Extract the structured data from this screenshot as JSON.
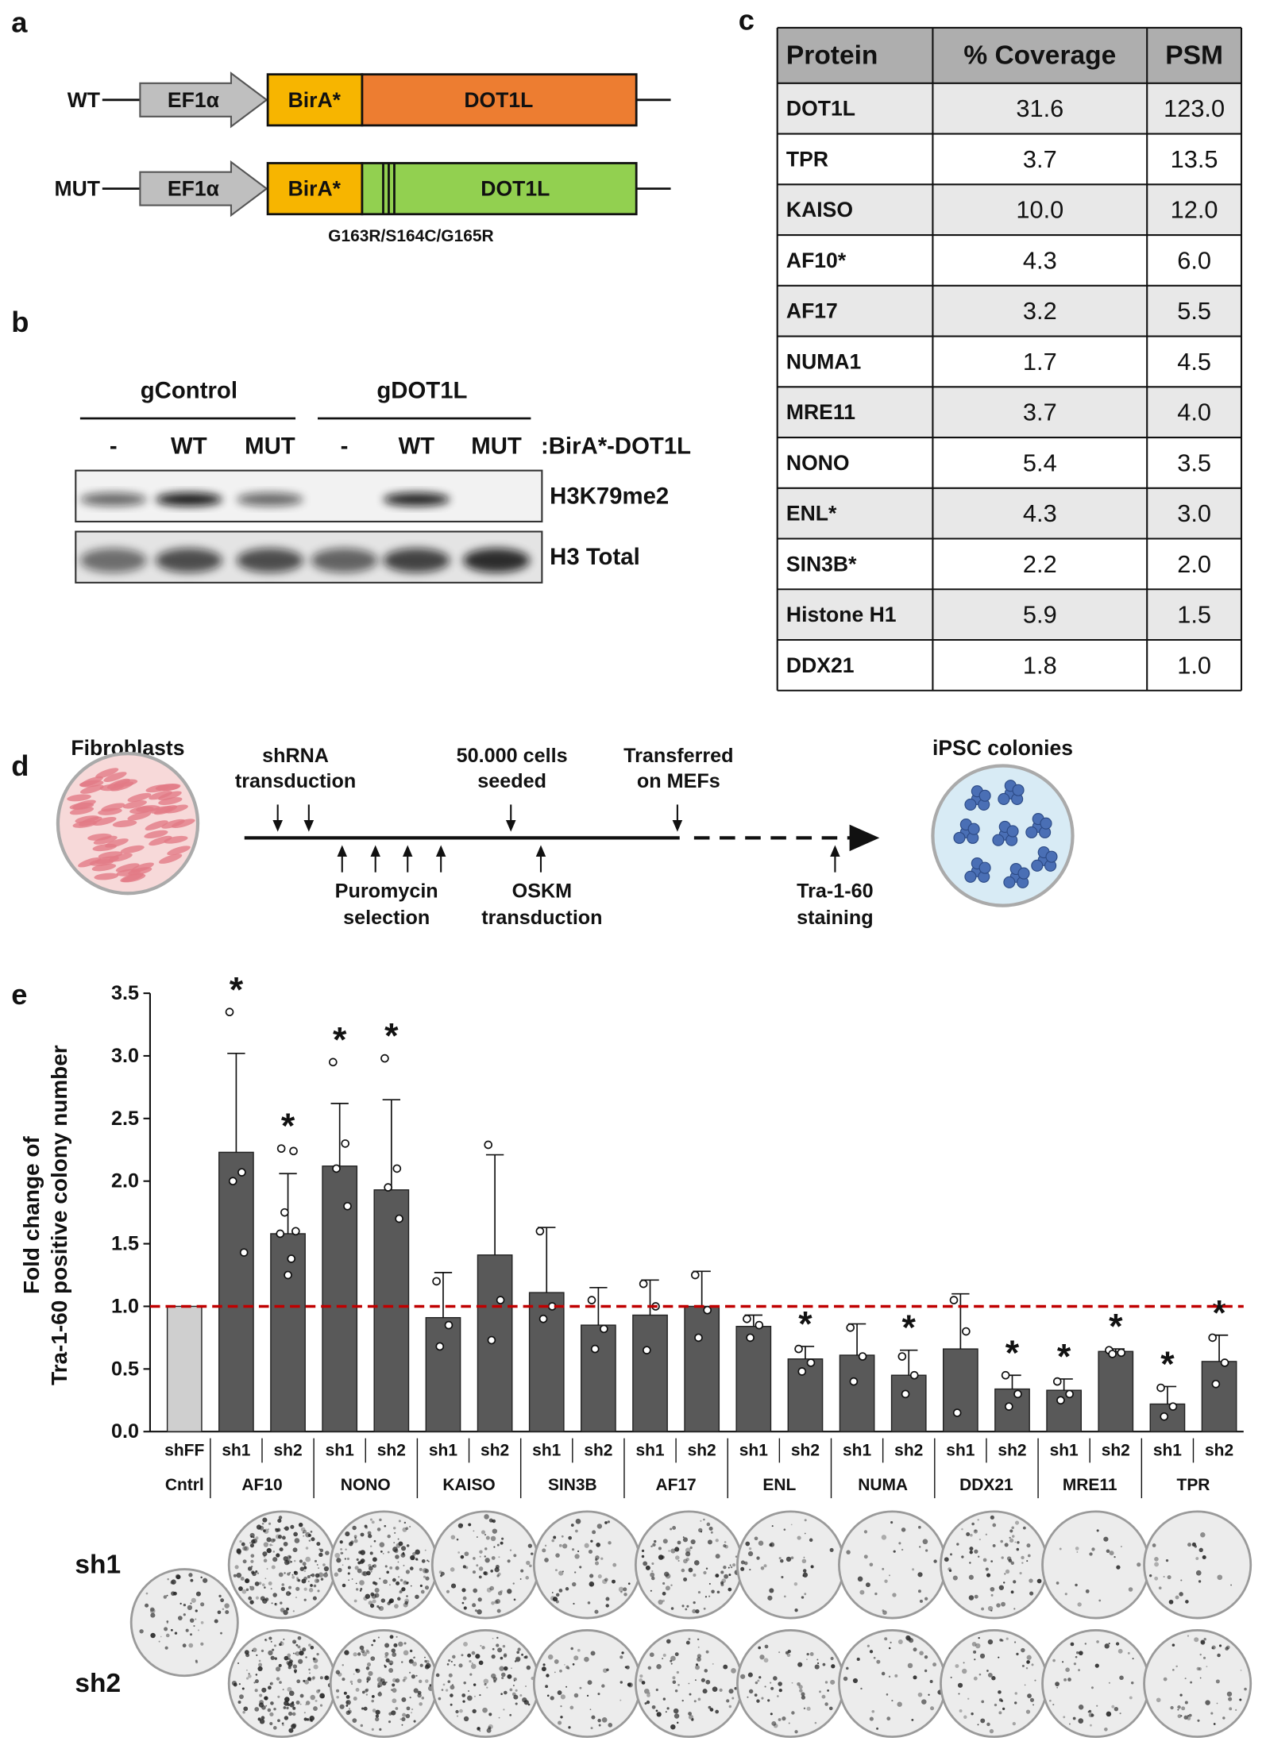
{
  "panel_labels": [
    "a",
    "b",
    "c",
    "d",
    "e"
  ],
  "constructs": {
    "rows": [
      {
        "label": "WT",
        "promoter": "EF1α",
        "tag": "BirA*",
        "gene": "DOT1L"
      },
      {
        "label": "MUT",
        "promoter": "EF1α",
        "tag": "BirA*",
        "gene": "DOT1L"
      }
    ],
    "mutation": "G163R/S164C/G165R"
  },
  "western_blot": {
    "groups": [
      "gControl",
      "gDOT1L"
    ],
    "lanes": [
      "-",
      "WT",
      "MUT",
      "-",
      "WT",
      "MUT"
    ],
    "lane_label": ":BirA*-DOT1L",
    "bands": [
      "H3K79me2",
      "H3 Total"
    ]
  },
  "table": {
    "header": [
      "Protein",
      "% Coverage",
      "PSM"
    ],
    "rows": [
      [
        "DOT1L",
        "31.6",
        "123.0"
      ],
      [
        "TPR",
        "3.7",
        "13.5"
      ],
      [
        "KAISO",
        "10.0",
        "12.0"
      ],
      [
        "AF10*",
        "4.3",
        "6.0"
      ],
      [
        "AF17",
        "3.2",
        "5.5"
      ],
      [
        "NUMA1",
        "1.7",
        "4.5"
      ],
      [
        "MRE11",
        "3.7",
        "4.0"
      ],
      [
        "NONO",
        "5.4",
        "3.5"
      ],
      [
        "ENL*",
        "4.3",
        "3.0"
      ],
      [
        "SIN3B*",
        "2.2",
        "2.0"
      ],
      [
        "Histone H1",
        "5.9",
        "1.5"
      ],
      [
        "DDX21",
        "1.8",
        "1.0"
      ]
    ]
  },
  "timeline": {
    "start": "Fibroblasts",
    "end": "iPSC colonies",
    "above": [
      [
        "shRNA",
        "transduction"
      ],
      [
        "50.000 cells",
        "seeded"
      ],
      [
        "Transferred",
        "on MEFs"
      ]
    ],
    "below": [
      [
        "Puromycin",
        "selection"
      ],
      [
        "OSKM",
        "transduction"
      ],
      [
        "Tra-1-60",
        "staining"
      ]
    ]
  },
  "chart_data": {
    "type": "bar",
    "y_label": [
      "Fold change of",
      "Tra-1-60 positive colony number"
    ],
    "ylim": [
      0,
      3.5
    ],
    "yticks": [
      {
        "value": 0,
        "label": "0.0"
      },
      0.5,
      {
        "value": 1,
        "label": "1.0"
      },
      1.5,
      {
        "value": 2,
        "label": "2.0"
      },
      2.5,
      {
        "value": 3,
        "label": "3.0"
      },
      3.5
    ],
    "reference_line": 1,
    "reference_color": "#c00000",
    "color": "#595959",
    "groups": [
      {
        "label": "Cntrl",
        "bars": [
          {
            "label": "shFF",
            "value": 1.0,
            "color": "#cfcfcf"
          }
        ]
      },
      {
        "label": "AF10",
        "bars": [
          {
            "label": "sh1",
            "value": 2.23,
            "error": 0.79,
            "points": [
              3.35,
              2.07,
              2.0,
              1.43
            ],
            "significance": "*"
          },
          {
            "label": "sh2",
            "value": 1.58,
            "error": 0.48,
            "points": [
              2.26,
              2.24,
              1.75,
              1.6,
              1.58,
              1.38,
              1.25
            ],
            "significance": "*"
          }
        ]
      },
      {
        "label": "NONO",
        "bars": [
          {
            "label": "sh1",
            "value": 2.12,
            "error": 0.5,
            "points": [
              2.95,
              2.3,
              2.1,
              1.8
            ],
            "significance": "*"
          },
          {
            "label": "sh2",
            "value": 1.93,
            "error": 0.72,
            "points": [
              2.98,
              2.1,
              1.95,
              1.7
            ],
            "significance": "*"
          }
        ]
      },
      {
        "label": "KAISO",
        "bars": [
          {
            "label": "sh1",
            "value": 0.91,
            "error": 0.36,
            "points": [
              1.2,
              0.85,
              0.68
            ]
          },
          {
            "label": "sh2",
            "value": 1.41,
            "error": 0.8,
            "points": [
              2.29,
              1.05,
              0.73
            ]
          }
        ]
      },
      {
        "label": "SIN3B",
        "bars": [
          {
            "label": "sh1",
            "value": 1.11,
            "error": 0.52,
            "points": [
              1.6,
              1.0,
              0.9
            ]
          },
          {
            "label": "sh2",
            "value": 0.85,
            "error": 0.3,
            "points": [
              1.05,
              0.82,
              0.66
            ]
          }
        ]
      },
      {
        "label": "AF17",
        "bars": [
          {
            "label": "sh1",
            "value": 0.93,
            "error": 0.28,
            "points": [
              1.18,
              1.0,
              0.65
            ]
          },
          {
            "label": "sh2",
            "value": 1.0,
            "error": 0.28,
            "points": [
              1.25,
              0.97,
              0.75
            ]
          }
        ]
      },
      {
        "label": "ENL",
        "bars": [
          {
            "label": "sh1",
            "value": 0.84,
            "error": 0.09,
            "points": [
              0.9,
              0.85,
              0.75
            ]
          },
          {
            "label": "sh2",
            "value": 0.58,
            "error": 0.1,
            "points": [
              0.66,
              0.55,
              0.48
            ],
            "significance": "*"
          }
        ]
      },
      {
        "label": "NUMA",
        "bars": [
          {
            "label": "sh1",
            "value": 0.61,
            "error": 0.25,
            "points": [
              0.83,
              0.6,
              0.4
            ]
          },
          {
            "label": "sh2",
            "value": 0.45,
            "error": 0.2,
            "points": [
              0.6,
              0.45,
              0.3
            ],
            "significance": "*"
          }
        ]
      },
      {
        "label": "DDX21",
        "bars": [
          {
            "label": "sh1",
            "value": 0.66,
            "error": 0.44,
            "points": [
              1.05,
              0.8,
              0.15
            ]
          },
          {
            "label": "sh2",
            "value": 0.34,
            "error": 0.11,
            "points": [
              0.45,
              0.3,
              0.2
            ],
            "significance": "*"
          }
        ]
      },
      {
        "label": "MRE11",
        "bars": [
          {
            "label": "sh1",
            "value": 0.33,
            "error": 0.09,
            "points": [
              0.4,
              0.3,
              0.25
            ],
            "significance": "*"
          },
          {
            "label": "sh2",
            "value": 0.64,
            "error": 0.02,
            "points": [
              0.65,
              0.63,
              0.62
            ],
            "significance": "*"
          }
        ]
      },
      {
        "label": "TPR",
        "bars": [
          {
            "label": "sh1",
            "value": 0.22,
            "error": 0.14,
            "points": [
              0.35,
              0.2,
              0.12
            ],
            "significance": "*"
          },
          {
            "label": "sh2",
            "value": 0.56,
            "error": 0.21,
            "points": [
              0.75,
              0.55,
              0.38
            ],
            "significance": "*"
          }
        ]
      }
    ]
  },
  "colony_images": {
    "rows": [
      "sh1",
      "sh2"
    ]
  }
}
